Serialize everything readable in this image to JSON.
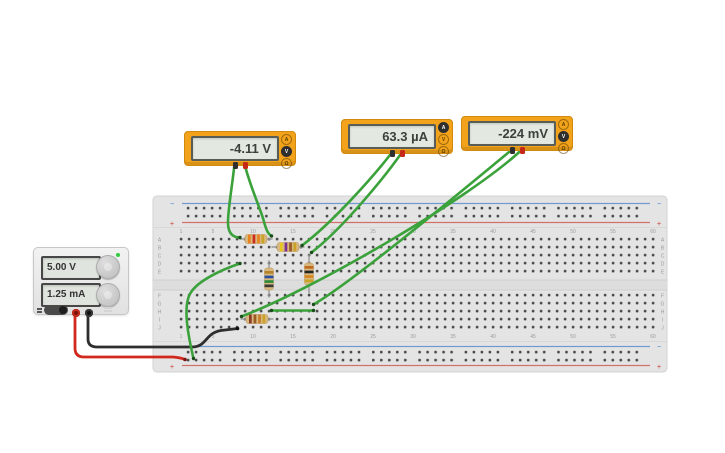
{
  "meters": [
    {
      "value": "-4.11 V",
      "buttons": [
        "A",
        "V",
        "Ω"
      ],
      "selected": 1
    },
    {
      "value": "63.3 µA",
      "buttons": [
        "A",
        "V",
        "Ω"
      ],
      "selected": 0
    },
    {
      "value": "-224 mV",
      "buttons": [
        "A",
        "V",
        "Ω"
      ],
      "selected": 1
    }
  ],
  "power_supply": {
    "voltage": "5.00 V",
    "current": "1.25 mA"
  },
  "breadboard": {
    "column_labels": [
      "1",
      "5",
      "10",
      "15",
      "20",
      "25",
      "30",
      "35",
      "40",
      "45",
      "50",
      "55",
      "60"
    ],
    "row_labels_top": [
      "A",
      "B",
      "C",
      "D",
      "E"
    ],
    "row_labels_bottom": [
      "F",
      "G",
      "H",
      "I",
      "J"
    ],
    "rail_minus_symbol": "−",
    "rail_plus_symbol": "+"
  },
  "resistors": [
    {
      "bands": [
        "#E8821E",
        "#CC2B1D",
        "#E8821E",
        "#C9A227"
      ]
    },
    {
      "bands": [
        "#E6C51E",
        "#7B2F8F",
        "#9A5A23",
        "#C9A227"
      ]
    },
    {
      "bands": [
        "#B5832B",
        "#2B4FA0",
        "#2E8B3A",
        "#3A3A3A"
      ]
    },
    {
      "bands": [
        "#C06A1E",
        "#252525",
        "#D9851E",
        "#C9A227"
      ]
    },
    {
      "bands": [
        "#8B3A26",
        "#9A5A23",
        "#C87D2A",
        "#C9A227"
      ]
    }
  ],
  "colors": {
    "wire_green": "#3BA23B",
    "wire_red": "#D2281E",
    "wire_black": "#2E2E2E",
    "meter_body": "#F2A31B",
    "meter_display_bg": "#E3E8E1",
    "lcd_bg": "#DFE5DE",
    "board_bg": "#E4E4E4",
    "resistor_body": "#D7B87E",
    "lead_gray": "#9A9A9A"
  }
}
